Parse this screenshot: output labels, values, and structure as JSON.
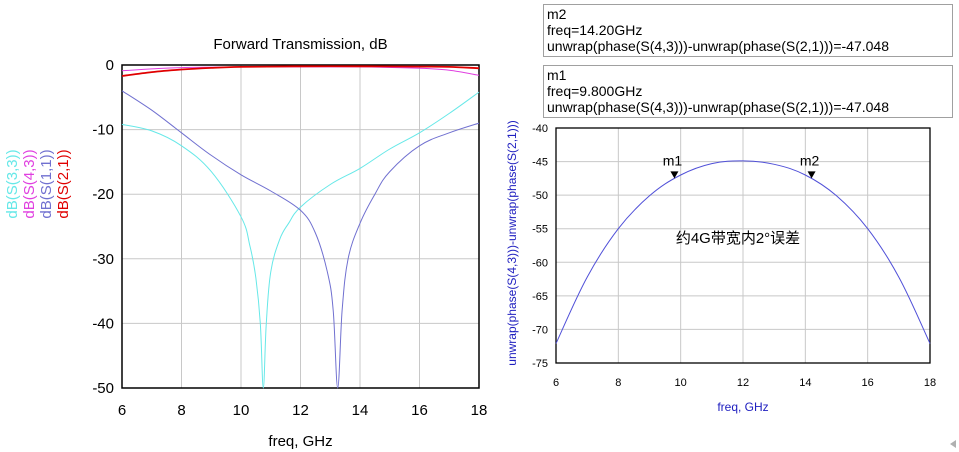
{
  "chart_data": [
    {
      "type": "line",
      "title": "Forward Transmission, dB",
      "xlabel": "freq, GHz",
      "xlim": [
        6,
        18
      ],
      "ylim": [
        -50,
        0
      ],
      "xticks": [
        "6",
        "8",
        "10",
        "12",
        "14",
        "16",
        "18"
      ],
      "yticks": [
        "0",
        "-10",
        "-20",
        "-30",
        "-40",
        "-50"
      ],
      "grid": true,
      "legend": "left, rotated vertical",
      "series": [
        {
          "name": "dB(S(3,3))",
          "color": "#66e8e8",
          "x": [
            6,
            7,
            8,
            9,
            10,
            10.3,
            10.5,
            10.65,
            10.75,
            10.85,
            11,
            11.3,
            11.6,
            12,
            13,
            14,
            15,
            16,
            17,
            18
          ],
          "y": [
            -9.2,
            -10.2,
            -12.5,
            -16.5,
            -23.5,
            -28,
            -33,
            -40,
            -50,
            -40,
            -32,
            -27,
            -24.5,
            -22,
            -18.5,
            -16,
            -13,
            -10.5,
            -7.5,
            -4.2
          ]
        },
        {
          "name": "dB(S(4,3))",
          "color": "#e040e0",
          "x": [
            6,
            7,
            8,
            10,
            12,
            14,
            16,
            17,
            18
          ],
          "y": [
            -0.9,
            -0.6,
            -0.4,
            -0.3,
            -0.3,
            -0.3,
            -0.5,
            -0.8,
            -1.6
          ]
        },
        {
          "name": "dB(S(1,1))",
          "color": "#7070d0",
          "x": [
            6,
            7,
            8,
            9,
            10,
            11,
            12,
            12.5,
            12.9,
            13.1,
            13.25,
            13.4,
            13.6,
            14,
            14.5,
            15,
            16,
            17,
            18
          ],
          "y": [
            -4,
            -7,
            -10.5,
            -14,
            -17,
            -19.5,
            -22.5,
            -26,
            -32,
            -38,
            -50,
            -38,
            -30,
            -24.5,
            -20,
            -16.5,
            -12.5,
            -10.5,
            -9
          ]
        },
        {
          "name": "dB(S(2,1))",
          "color": "#e00000",
          "x": [
            6,
            7,
            8,
            9,
            10,
            12,
            14,
            16,
            17,
            18
          ],
          "y": [
            -1.7,
            -1.1,
            -0.7,
            -0.45,
            -0.3,
            -0.2,
            -0.2,
            -0.25,
            -0.3,
            -0.5
          ]
        }
      ]
    },
    {
      "type": "line",
      "title": "",
      "xlabel": "freq, GHz",
      "ylabel": "unwrap(phase(S(4,3)))-unwrap(phase(S(2,1)))",
      "xlim": [
        6,
        18
      ],
      "ylim": [
        -75,
        -40
      ],
      "xticks": [
        "6",
        "8",
        "10",
        "12",
        "14",
        "16",
        "18"
      ],
      "yticks": [
        "-40",
        "-45",
        "-50",
        "-55",
        "-60",
        "-65",
        "-70",
        "-75"
      ],
      "grid": true,
      "series": [
        {
          "name": "unwrap(phase(S(4,3)))-unwrap(phase(S(2,1)))",
          "color": "#5050d8",
          "x": [
            6,
            7,
            8,
            9,
            10,
            11,
            12,
            13,
            14,
            15,
            16,
            17,
            18
          ],
          "y": [
            -72.1,
            -62.2,
            -55.0,
            -50.1,
            -47.0,
            -45.3,
            -44.9,
            -45.4,
            -47.0,
            -50.1,
            -55.0,
            -62.2,
            -72.1
          ]
        }
      ],
      "markers": [
        {
          "label": "m1",
          "x": 9.8,
          "y": -47.048
        },
        {
          "label": "m2",
          "x": 14.2,
          "y": -47.048
        }
      ],
      "annotation": "约4G带宽内2°误差"
    }
  ],
  "marker_readouts": [
    {
      "name": "m2",
      "freq": "freq=14.20GHz",
      "expr": "unwrap(phase(S(4,3)))-unwrap(phase(S(2,1)))=-47.048"
    },
    {
      "name": "m1",
      "freq": "freq=9.800GHz",
      "expr": "unwrap(phase(S(4,3)))-unwrap(phase(S(2,1)))=-47.048"
    }
  ]
}
